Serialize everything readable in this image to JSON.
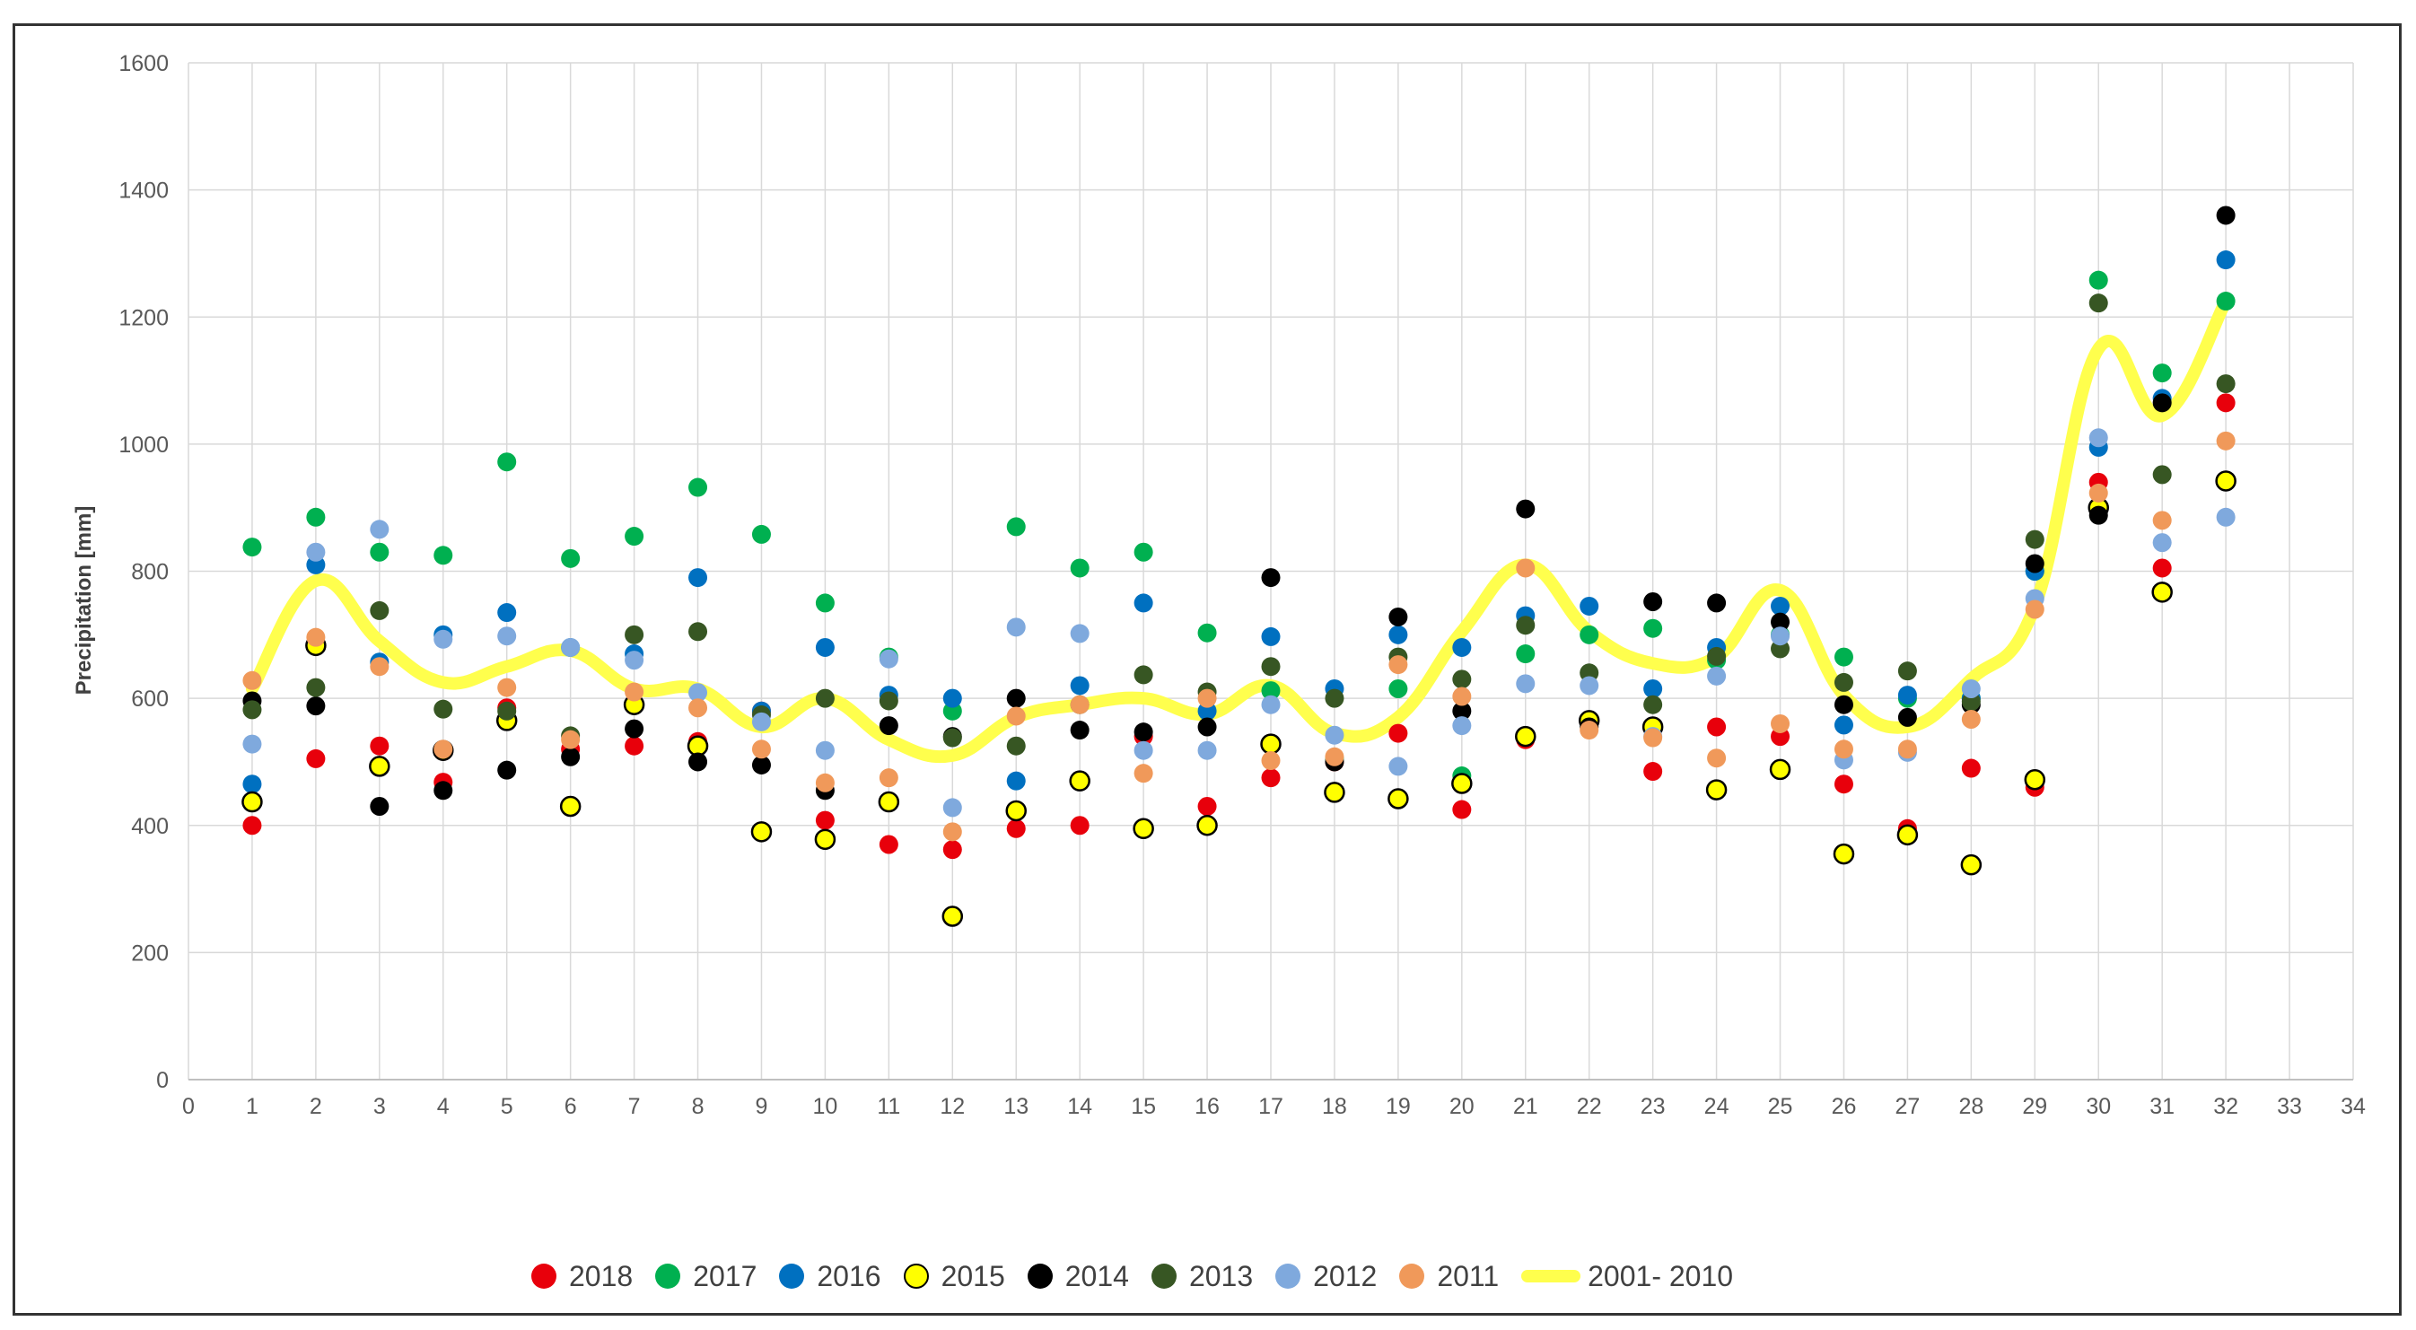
{
  "chart_data": {
    "type": "scatter",
    "title": "",
    "xlabel": "",
    "ylabel": "Precipitation [mm]",
    "xlim": [
      0,
      34
    ],
    "ylim": [
      0,
      1600
    ],
    "x_ticks": [
      0,
      1,
      2,
      3,
      4,
      5,
      6,
      7,
      8,
      9,
      10,
      11,
      12,
      13,
      14,
      15,
      16,
      17,
      18,
      19,
      20,
      21,
      22,
      23,
      24,
      25,
      26,
      27,
      28,
      29,
      30,
      31,
      32,
      33,
      34
    ],
    "y_ticks": [
      0,
      200,
      400,
      600,
      800,
      1000,
      1200,
      1400,
      1600
    ],
    "grid": true,
    "legend_position": "bottom",
    "series": [
      {
        "name": "2018",
        "color": "#e8000b",
        "stroke": "none",
        "values": [
          400,
          505,
          525,
          468,
          585,
          520,
          525,
          532,
          580,
          408,
          370,
          362,
          395,
          400,
          540,
          430,
          475,
          500,
          545,
          425,
          535,
          565,
          485,
          555,
          540,
          465,
          395,
          490,
          460,
          940,
          805,
          1065
        ]
      },
      {
        "name": "2017",
        "color": "#00b050",
        "stroke": "none",
        "values": [
          838,
          885,
          830,
          825,
          972,
          820,
          855,
          932,
          858,
          750,
          665,
          580,
          870,
          805,
          830,
          703,
          612,
          505,
          615,
          478,
          670,
          700,
          710,
          660,
          700,
          665,
          600,
          600,
          800,
          1258,
          1112,
          1225
        ]
      },
      {
        "name": "2016",
        "color": "#0070c0",
        "stroke": "none",
        "values": [
          465,
          810,
          657,
          700,
          735,
          680,
          670,
          790,
          580,
          680,
          605,
          600,
          470,
          620,
          750,
          580,
          697,
          615,
          700,
          680,
          730,
          745,
          615,
          680,
          745,
          558,
          605,
          600,
          800,
          995,
          1072,
          1290
        ]
      },
      {
        "name": "2015",
        "color": "#ffff00",
        "stroke": "#000000",
        "values": [
          437,
          683,
          493,
          518,
          565,
          430,
          590,
          525,
          390,
          378,
          437,
          257,
          423,
          470,
          395,
          400,
          528,
          452,
          442,
          466,
          540,
          565,
          555,
          456,
          488,
          355,
          385,
          338,
          472,
          900,
          767,
          942
        ]
      },
      {
        "name": "2014",
        "color": "#000000",
        "stroke": "none",
        "values": [
          596,
          588,
          430,
          455,
          487,
          508,
          552,
          500,
          495,
          455,
          557,
          540,
          600,
          550,
          547,
          555,
          790,
          500,
          728,
          580,
          898,
          555,
          752,
          750,
          720,
          590,
          570,
          590,
          812,
          888,
          1065,
          1360
        ]
      },
      {
        "name": "2013",
        "color": "#375623",
        "stroke": "none",
        "values": [
          582,
          617,
          738,
          583,
          580,
          541,
          700,
          705,
          574,
          600,
          596,
          538,
          525,
          590,
          637,
          610,
          650,
          600,
          665,
          630,
          715,
          640,
          590,
          666,
          678,
          625,
          643,
          595,
          850,
          1222,
          952,
          1095
        ]
      },
      {
        "name": "2012",
        "color": "#7fa9dd",
        "stroke": "none",
        "values": [
          528,
          830,
          866,
          693,
          698,
          680,
          660,
          609,
          563,
          518,
          662,
          428,
          712,
          702,
          518,
          518,
          590,
          542,
          493,
          557,
          623,
          620,
          540,
          635,
          698,
          503,
          515,
          615,
          757,
          1010,
          845,
          885
        ]
      },
      {
        "name": "2011",
        "color": "#f0995a",
        "stroke": "none",
        "values": [
          628,
          696,
          650,
          520,
          617,
          535,
          610,
          585,
          520,
          467,
          475,
          390,
          572,
          590,
          482,
          600,
          502,
          508,
          653,
          603,
          805,
          550,
          538,
          506,
          560,
          520,
          520,
          567,
          740,
          923,
          880,
          1005
        ]
      }
    ],
    "reference_line": {
      "name": "2001- 2010",
      "color": "#ffff4d",
      "values": [
        615,
        785,
        690,
        625,
        650,
        675,
        615,
        615,
        555,
        600,
        535,
        510,
        570,
        590,
        600,
        575,
        620,
        545,
        570,
        705,
        810,
        705,
        655,
        665,
        770,
        605,
        555,
        630,
        745,
        1150,
        1045,
        1225
      ]
    }
  }
}
